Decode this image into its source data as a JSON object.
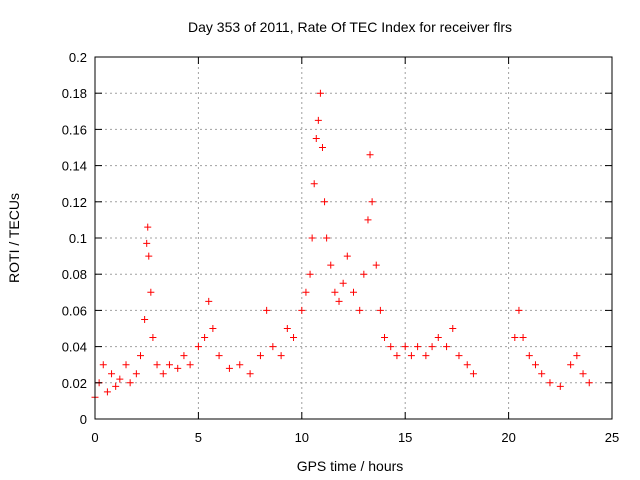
{
  "chart_data": {
    "type": "scatter",
    "title": "Day 353 of 2011, Rate Of TEC Index for receiver flrs",
    "xlabel": "GPS time / hours",
    "ylabel": "ROTI / TECUs",
    "xlim": [
      0,
      25
    ],
    "ylim": [
      0,
      0.2
    ],
    "xticks": [
      "0",
      "5",
      "10",
      "15",
      "20",
      "25"
    ],
    "yticks": [
      "0",
      "0.02",
      "0.04",
      "0.06",
      "0.08",
      "0.1",
      "0.12",
      "0.14",
      "0.16",
      "0.18",
      "0.2"
    ],
    "grid": true,
    "marker": "+",
    "series_color": "#ff0000",
    "series": [
      {
        "name": "ROTI",
        "points": [
          [
            0.0,
            0.012
          ],
          [
            0.2,
            0.02
          ],
          [
            0.4,
            0.03
          ],
          [
            0.6,
            0.015
          ],
          [
            0.8,
            0.025
          ],
          [
            1.0,
            0.018
          ],
          [
            1.2,
            0.022
          ],
          [
            1.5,
            0.03
          ],
          [
            1.7,
            0.02
          ],
          [
            2.0,
            0.025
          ],
          [
            2.2,
            0.035
          ],
          [
            2.4,
            0.055
          ],
          [
            2.5,
            0.097
          ],
          [
            2.55,
            0.106
          ],
          [
            2.6,
            0.09
          ],
          [
            2.7,
            0.07
          ],
          [
            2.8,
            0.045
          ],
          [
            3.0,
            0.03
          ],
          [
            3.3,
            0.025
          ],
          [
            3.6,
            0.03
          ],
          [
            4.0,
            0.028
          ],
          [
            4.3,
            0.035
          ],
          [
            4.6,
            0.03
          ],
          [
            5.0,
            0.04
          ],
          [
            5.3,
            0.045
          ],
          [
            5.5,
            0.065
          ],
          [
            5.7,
            0.05
          ],
          [
            6.0,
            0.035
          ],
          [
            6.5,
            0.028
          ],
          [
            7.0,
            0.03
          ],
          [
            7.5,
            0.025
          ],
          [
            8.0,
            0.035
          ],
          [
            8.3,
            0.06
          ],
          [
            8.6,
            0.04
          ],
          [
            9.0,
            0.035
          ],
          [
            9.3,
            0.05
          ],
          [
            9.6,
            0.045
          ],
          [
            10.0,
            0.06
          ],
          [
            10.2,
            0.07
          ],
          [
            10.4,
            0.08
          ],
          [
            10.5,
            0.1
          ],
          [
            10.6,
            0.13
          ],
          [
            10.7,
            0.155
          ],
          [
            10.8,
            0.165
          ],
          [
            10.9,
            0.18
          ],
          [
            11.0,
            0.15
          ],
          [
            11.1,
            0.12
          ],
          [
            11.2,
            0.1
          ],
          [
            11.4,
            0.085
          ],
          [
            11.6,
            0.07
          ],
          [
            11.8,
            0.065
          ],
          [
            12.0,
            0.075
          ],
          [
            12.2,
            0.09
          ],
          [
            12.5,
            0.07
          ],
          [
            12.8,
            0.06
          ],
          [
            13.0,
            0.08
          ],
          [
            13.2,
            0.11
          ],
          [
            13.3,
            0.146
          ],
          [
            13.4,
            0.12
          ],
          [
            13.6,
            0.085
          ],
          [
            13.8,
            0.06
          ],
          [
            14.0,
            0.045
          ],
          [
            14.3,
            0.04
          ],
          [
            14.6,
            0.035
          ],
          [
            15.0,
            0.04
          ],
          [
            15.3,
            0.035
          ],
          [
            15.6,
            0.04
          ],
          [
            16.0,
            0.035
          ],
          [
            16.3,
            0.04
          ],
          [
            16.6,
            0.045
          ],
          [
            17.0,
            0.04
          ],
          [
            17.3,
            0.05
          ],
          [
            17.6,
            0.035
          ],
          [
            18.0,
            0.03
          ],
          [
            18.3,
            0.025
          ],
          [
            20.3,
            0.045
          ],
          [
            20.5,
            0.06
          ],
          [
            20.7,
            0.045
          ],
          [
            21.0,
            0.035
          ],
          [
            21.3,
            0.03
          ],
          [
            21.6,
            0.025
          ],
          [
            22.0,
            0.02
          ],
          [
            22.5,
            0.018
          ],
          [
            23.0,
            0.03
          ],
          [
            23.3,
            0.035
          ],
          [
            23.6,
            0.025
          ],
          [
            23.9,
            0.02
          ]
        ]
      }
    ]
  }
}
